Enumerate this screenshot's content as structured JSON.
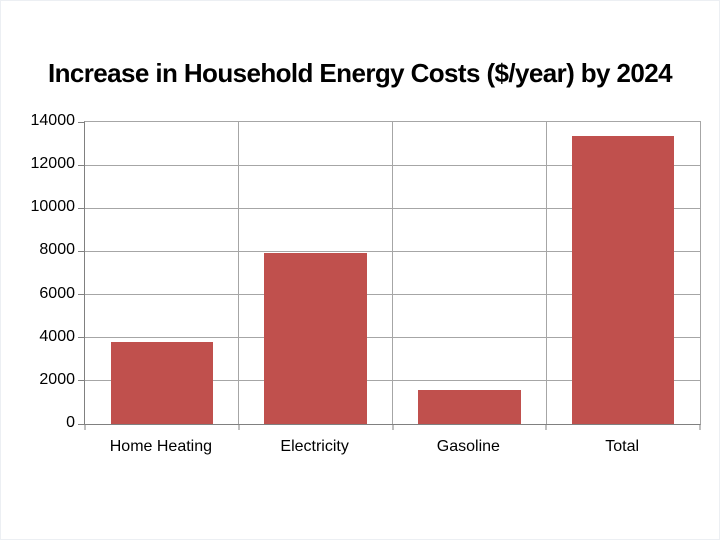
{
  "slide": {
    "title": "Increase in Household Energy Costs ($/year) by 2024"
  },
  "chart_data": {
    "type": "bar",
    "title": "Increase in Household Energy Costs ($/year) by 2024",
    "categories": [
      "Home Heating",
      "Electricity",
      "Gasoline",
      "Total"
    ],
    "values": [
      3800,
      7950,
      1600,
      13350
    ],
    "xlabel": "",
    "ylabel": "",
    "ylim": [
      0,
      14000
    ],
    "ytick_step": 2000,
    "ytick_labels": [
      "0",
      "2000",
      "4000",
      "6000",
      "8000",
      "10000",
      "12000",
      "14000"
    ],
    "grid": "horizontal-and-vertical-major",
    "legend": "none",
    "bar_gap_fraction": 0.333,
    "colors": {
      "bar": "#c0504d",
      "gridline": "#a6a6a6",
      "axis": "#808080",
      "text": "#000000",
      "background": "#ffffff"
    }
  }
}
